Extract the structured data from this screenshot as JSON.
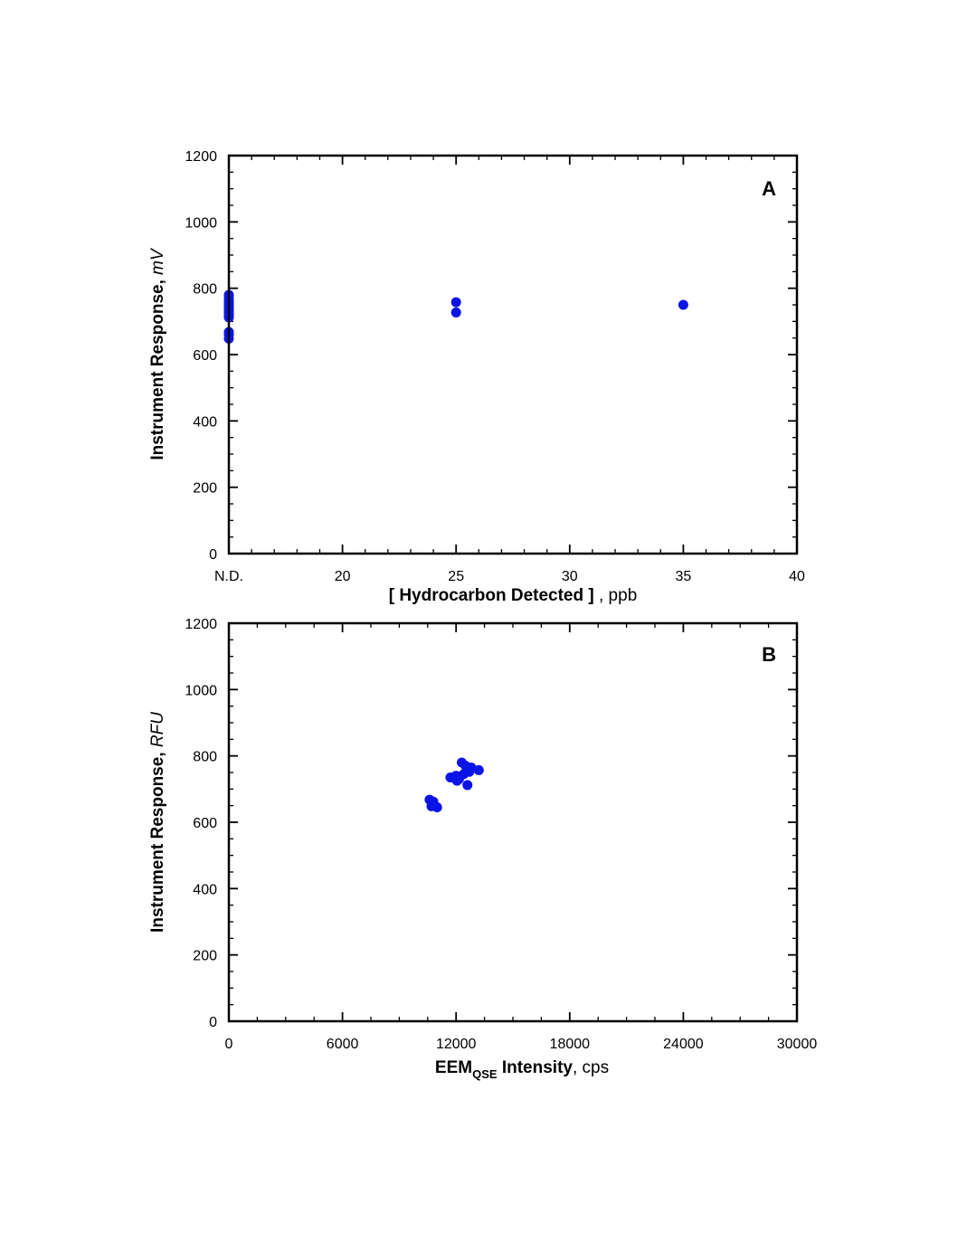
{
  "colors": {
    "marker": "#0a14e6",
    "axis": "#000000"
  },
  "chart_data": [
    {
      "type": "scatter",
      "panel_label": "A",
      "xlabel": {
        "bold": "[ Hydrocarbon Detected ]",
        "normal": " , ppb"
      },
      "ylabel": {
        "bold": "Instrument Response, ",
        "italic": "mV"
      },
      "xlim": [
        15,
        40
      ],
      "ylim": [
        0,
        1200
      ],
      "xticks": [
        15,
        20,
        25,
        30,
        35,
        40
      ],
      "xtick_labels": [
        "N.D.",
        "20",
        "25",
        "30",
        "35",
        "40"
      ],
      "yticks": [
        0,
        200,
        400,
        600,
        800,
        1000,
        1200
      ],
      "ytick_labels": [
        "0",
        "200",
        "400",
        "600",
        "800",
        "1000",
        "1200"
      ],
      "x_minor_step": 1,
      "y_minor_step": 50,
      "grid": false,
      "points": [
        [
          15,
          780
        ],
        [
          15,
          770
        ],
        [
          15,
          762
        ],
        [
          15,
          755
        ],
        [
          15,
          748
        ],
        [
          15,
          742
        ],
        [
          15,
          736
        ],
        [
          15,
          730
        ],
        [
          15,
          724
        ],
        [
          15,
          718
        ],
        [
          15,
          712
        ],
        [
          15,
          668
        ],
        [
          15,
          660
        ],
        [
          15,
          648
        ],
        [
          25,
          758
        ],
        [
          25,
          727
        ],
        [
          35,
          750
        ]
      ]
    },
    {
      "type": "scatter",
      "panel_label": "B",
      "xlabel": {
        "bold": "EEM",
        "sub": "QSE",
        "bold2": " Intensity",
        "normal": ", cps"
      },
      "ylabel": {
        "bold": "Instrument Response, ",
        "italic": "RFU"
      },
      "xlim": [
        0,
        30000
      ],
      "ylim": [
        0,
        1200
      ],
      "xticks": [
        0,
        6000,
        12000,
        18000,
        24000,
        30000
      ],
      "xtick_labels": [
        "0",
        "6000",
        "12000",
        "18000",
        "24000",
        "30000"
      ],
      "yticks": [
        0,
        200,
        400,
        600,
        800,
        1000,
        1200
      ],
      "ytick_labels": [
        "0",
        "200",
        "400",
        "600",
        "800",
        "1000",
        "1200"
      ],
      "x_minor_step": 1500,
      "y_minor_step": 50,
      "grid": false,
      "points": [
        [
          12300,
          780
        ],
        [
          12500,
          770
        ],
        [
          12800,
          765
        ],
        [
          13200,
          757
        ],
        [
          12700,
          752
        ],
        [
          12400,
          745
        ],
        [
          12000,
          740
        ],
        [
          11700,
          735
        ],
        [
          12150,
          730
        ],
        [
          12050,
          725
        ],
        [
          12600,
          712
        ],
        [
          10600,
          668
        ],
        [
          10800,
          662
        ],
        [
          10700,
          648
        ],
        [
          11000,
          645
        ]
      ]
    }
  ]
}
